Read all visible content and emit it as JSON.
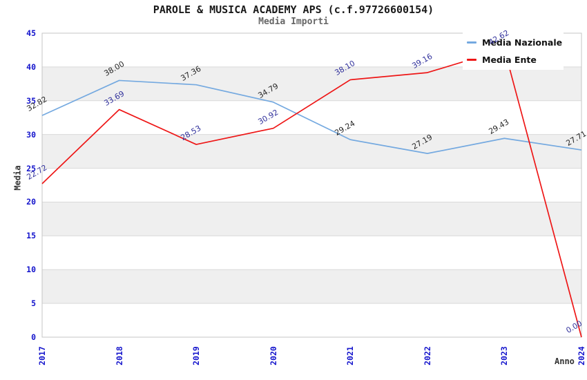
{
  "header": {
    "title": "PAROLE & MUSICA ACADEMY APS (c.f.97726600154)",
    "subtitle": "Media Importi"
  },
  "chart_data": {
    "type": "line",
    "title": "PAROLE & MUSICA ACADEMY APS (c.f.97726600154)",
    "subtitle": "Media Importi",
    "xlabel": "Anno",
    "ylabel": "Media",
    "x": [
      2017,
      2018,
      2019,
      2020,
      2021,
      2022,
      2023,
      2024
    ],
    "series": [
      {
        "name": "Media Nazionale",
        "color": "#74a9e0",
        "label_color": "#262626",
        "values": [
          32.82,
          38.0,
          37.36,
          34.79,
          29.24,
          27.19,
          29.43,
          27.71
        ]
      },
      {
        "name": "Media Ente",
        "color": "#ee1616",
        "label_color": "#31319c",
        "values": [
          22.72,
          33.69,
          28.53,
          30.92,
          38.1,
          39.16,
          42.62,
          0.0
        ]
      }
    ],
    "ylim": [
      0,
      45
    ],
    "ytick_step": 5,
    "value_label_decimals": 2,
    "grid": true,
    "legend_position": "top-right",
    "band_colors": [
      "#ffffff",
      "#efefef"
    ],
    "grid_color": "#d9d9d9",
    "border_color": "#c6c6c6",
    "tick_color": "#1414cc"
  }
}
